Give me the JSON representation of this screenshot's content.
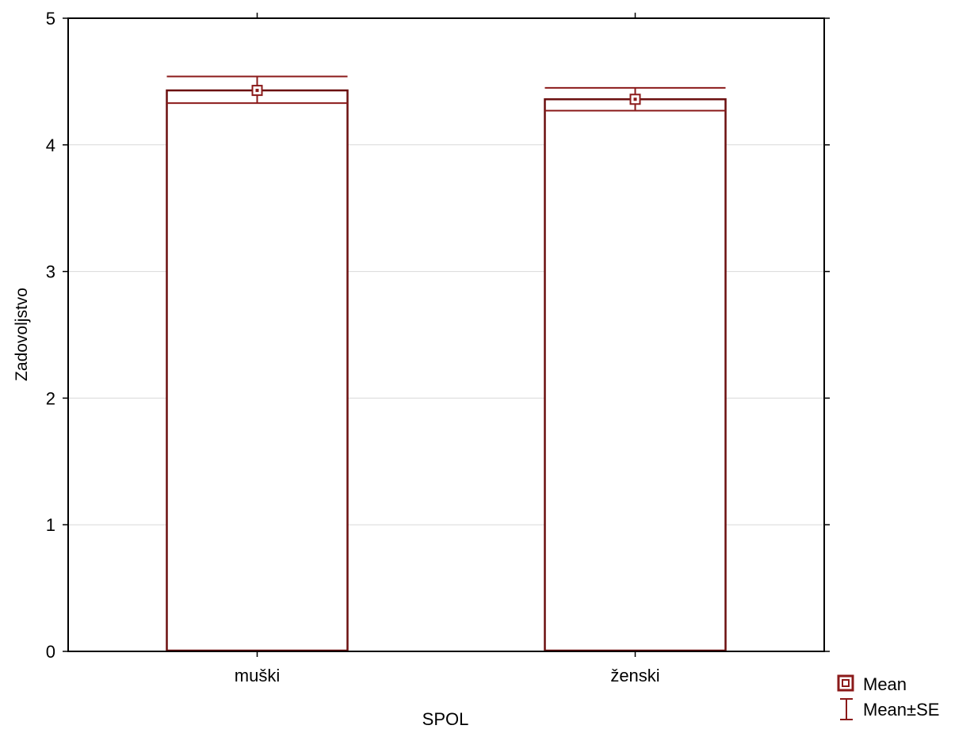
{
  "chart_data": {
    "type": "bar",
    "categories": [
      "muški",
      "ženski"
    ],
    "series": [
      {
        "name": "Mean",
        "values": [
          4.43,
          4.36
        ],
        "se_low": [
          4.33,
          4.27
        ],
        "se_high": [
          4.54,
          4.45
        ]
      }
    ],
    "xlabel": "SPOL",
    "ylabel": "Zadovoljstvo",
    "ylim": [
      0,
      5
    ],
    "yticks": [
      "0",
      "1",
      "2",
      "3",
      "4",
      "5"
    ],
    "grid": true,
    "legend": {
      "placement": "bottom-right",
      "entries": [
        {
          "label": "Mean",
          "marker": "square-marker-icon"
        },
        {
          "label": "Mean±SE",
          "marker": "error-bar-icon"
        }
      ]
    },
    "colors": {
      "bar_stroke": "#6b0f0f",
      "error_bar": "#8b1a1a",
      "grid": "#d9d9d9",
      "axis": "#000000"
    }
  }
}
